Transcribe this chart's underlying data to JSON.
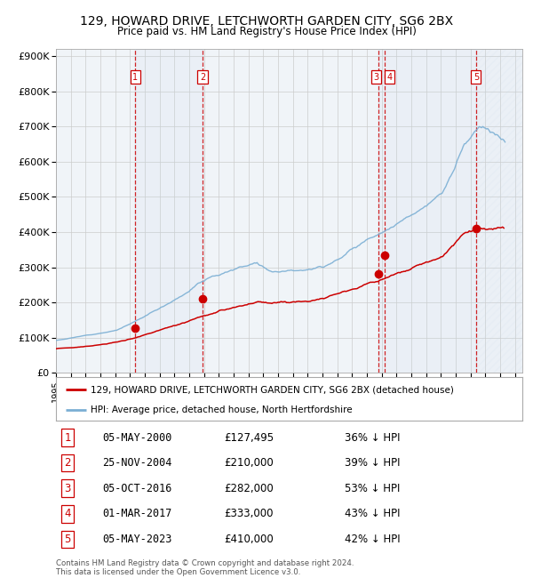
{
  "title": "129, HOWARD DRIVE, LETCHWORTH GARDEN CITY, SG6 2BX",
  "subtitle": "Price paid vs. HM Land Registry's House Price Index (HPI)",
  "hpi_color": "#7bafd4",
  "price_color": "#cc0000",
  "bg_color": "#ffffff",
  "grid_color": "#cccccc",
  "sale_dates_decimal": [
    2000.37,
    2004.9,
    2016.76,
    2017.17,
    2023.37
  ],
  "sale_prices": [
    127495,
    210000,
    282000,
    333000,
    410000
  ],
  "sale_labels": [
    "1",
    "2",
    "3",
    "4",
    "5"
  ],
  "vline_pairs": [
    [
      2000.37,
      2004.9
    ],
    [
      2016.76,
      2023.37
    ]
  ],
  "hatch_start": 2023.37,
  "xlim_start": 1995.0,
  "xlim_end": 2026.5,
  "ylim": [
    0,
    920000
  ],
  "yticks": [
    0,
    100000,
    200000,
    300000,
    400000,
    500000,
    600000,
    700000,
    800000,
    900000
  ],
  "ytick_labels": [
    "£0",
    "£100K",
    "£200K",
    "£300K",
    "£400K",
    "£500K",
    "£600K",
    "£700K",
    "£800K",
    "£900K"
  ],
  "legend_line1": "129, HOWARD DRIVE, LETCHWORTH GARDEN CITY, SG6 2BX (detached house)",
  "legend_line2": "HPI: Average price, detached house, North Hertfordshire",
  "table_data": [
    [
      "1",
      "05-MAY-2000",
      "£127,495",
      "36% ↓ HPI"
    ],
    [
      "2",
      "25-NOV-2004",
      "£210,000",
      "39% ↓ HPI"
    ],
    [
      "3",
      "05-OCT-2016",
      "£282,000",
      "53% ↓ HPI"
    ],
    [
      "4",
      "01-MAR-2017",
      "£333,000",
      "43% ↓ HPI"
    ],
    [
      "5",
      "05-MAY-2023",
      "£410,000",
      "42% ↓ HPI"
    ]
  ],
  "footer": "Contains HM Land Registry data © Crown copyright and database right 2024.\nThis data is licensed under the Open Government Licence v3.0."
}
